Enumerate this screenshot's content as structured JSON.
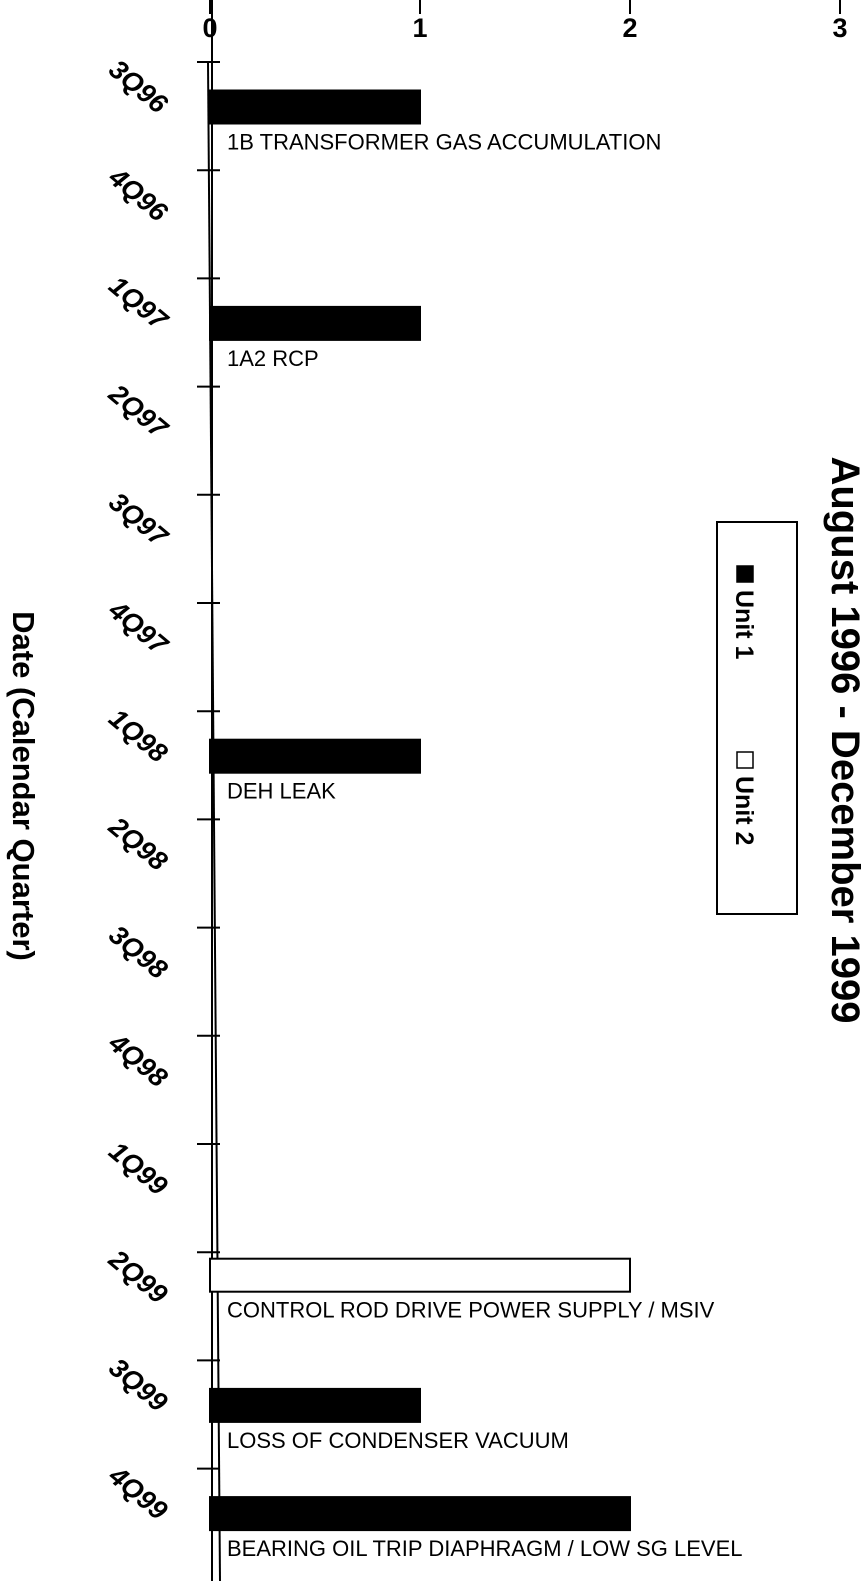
{
  "chart_data": {
    "type": "bar",
    "orientation": "rotated 90 degrees clockwise",
    "title": "August 1996 - December 1999",
    "xlabel": "Date (Calendar Quarter)",
    "ylabel": "",
    "ylim": [
      0,
      3
    ],
    "yticks": [
      "0",
      "1",
      "2",
      "3"
    ],
    "categories": [
      "3Q96",
      "4Q96",
      "1Q97",
      "2Q97",
      "3Q97",
      "4Q97",
      "1Q98",
      "2Q98",
      "3Q98",
      "4Q98",
      "1Q99",
      "2Q99",
      "3Q99",
      "4Q99"
    ],
    "series": [
      {
        "name": "Unit 1",
        "color": "#000000",
        "values": [
          1,
          0,
          1,
          0,
          0,
          0,
          1,
          0,
          0,
          0,
          0,
          0,
          1,
          2
        ]
      },
      {
        "name": "Unit 2",
        "color": "#ffffff",
        "values": [
          0,
          0,
          0,
          0,
          0,
          0,
          0,
          0,
          0,
          0,
          0,
          2,
          0,
          0
        ]
      }
    ],
    "bars": [
      {
        "quarter": "3Q96",
        "series": "Unit 1",
        "value": 1,
        "label": "1B TRANSFORMER GAS ACCUMULATION"
      },
      {
        "quarter": "1Q97",
        "series": "Unit 1",
        "value": 1,
        "label": "1A2 RCP"
      },
      {
        "quarter": "1Q98",
        "series": "Unit 1",
        "value": 1,
        "label": "DEH LEAK"
      },
      {
        "quarter": "2Q99",
        "series": "Unit 2",
        "value": 2,
        "label": "CONTROL ROD DRIVE POWER SUPPLY / MSIV"
      },
      {
        "quarter": "3Q99",
        "series": "Unit 1",
        "value": 1,
        "label": "LOSS OF CONDENSER VACUUM"
      },
      {
        "quarter": "4Q99",
        "series": "Unit 1",
        "value": 2,
        "label": "BEARING OIL TRIP DIAPHRAGM / LOW SG LEVEL"
      }
    ],
    "legend": {
      "placement": "right",
      "entries": [
        "Unit 1",
        "Unit 2"
      ]
    },
    "grid": false
  }
}
